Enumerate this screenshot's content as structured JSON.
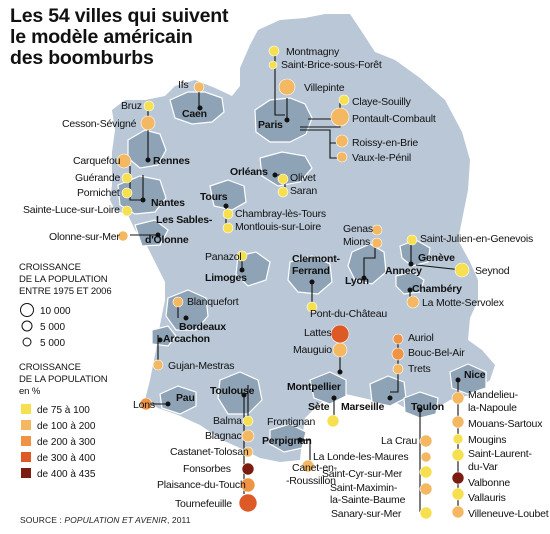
{
  "title": [
    "Les 54 villes qui suivent",
    "le modèle américain",
    "des boomburbs"
  ],
  "source": {
    "prefix": "SOURCE : ",
    "text": "POPULATION ET AVENIR",
    "suffix": ", 2011"
  },
  "legend": {
    "size_title": [
      "CROISSANCE",
      "DE LA POPULATION",
      "ENTRE 1975 ET 2006"
    ],
    "sizes": [
      "10 000",
      "5 000",
      "5 000"
    ],
    "color_title": [
      "CROISSANCE",
      "DE LA POPULATION",
      "en %"
    ],
    "classes": [
      {
        "label": "de 75 à 100",
        "color": "#f7e050"
      },
      {
        "label": "de 100 à 200",
        "color": "#f4b862"
      },
      {
        "label": "de 200 à 300",
        "color": "#ef9445"
      },
      {
        "label": "de 300 à 400",
        "color": "#dd5a27"
      },
      {
        "label": "de 400 à 435",
        "color": "#7a1c10"
      }
    ]
  },
  "colors": {
    "land": "#b9c7d6",
    "urban": "#8fa3b6",
    "urban_edge": "#ffffff",
    "line": "#111111"
  },
  "cities": [
    {
      "name": "Caen"
    },
    {
      "name": "Paris"
    },
    {
      "name": "Rennes"
    },
    {
      "name": "Nantes"
    },
    {
      "name": "Les Sables-"
    },
    {
      "name": "d'Olonne"
    },
    {
      "name": "Orléans"
    },
    {
      "name": "Tours"
    },
    {
      "name": "Limoges"
    },
    {
      "name": "Bordeaux"
    },
    {
      "name": "Arcachon"
    },
    {
      "name": "Pau"
    },
    {
      "name": "Toulouse"
    },
    {
      "name": "Perpignan"
    },
    {
      "name": "Montpellier"
    },
    {
      "name": "Sète"
    },
    {
      "name": "Marseille"
    },
    {
      "name": "Toulon"
    },
    {
      "name": "Nice"
    },
    {
      "name": "Clermont-"
    },
    {
      "name": "Ferrand"
    },
    {
      "name": "Lyon"
    },
    {
      "name": "Genève"
    },
    {
      "name": "Annecy"
    },
    {
      "name": "Chambéry"
    }
  ],
  "communes": [
    {
      "name": "Ifs",
      "growth_class": 2
    },
    {
      "name": "Montmagny",
      "growth_class": 1
    },
    {
      "name": "Saint-Brice-sous-Forêt",
      "growth_class": 1
    },
    {
      "name": "Villepinte",
      "growth_class": 2
    },
    {
      "name": "Claye-Souilly",
      "growth_class": 1
    },
    {
      "name": "Pontault-Combault",
      "growth_class": 2
    },
    {
      "name": "Roissy-en-Brie",
      "growth_class": 2
    },
    {
      "name": "Vaux-le-Pénil",
      "growth_class": 2
    },
    {
      "name": "Bruz",
      "growth_class": 1
    },
    {
      "name": "Cesson-Sévigné",
      "growth_class": 2
    },
    {
      "name": "Carquefou",
      "growth_class": 2
    },
    {
      "name": "Guérande",
      "growth_class": 1
    },
    {
      "name": "Pornichet",
      "growth_class": 1
    },
    {
      "name": "Sainte-Luce-sur-Loire",
      "growth_class": 1
    },
    {
      "name": "Olonne-sur-Mer",
      "growth_class": 2
    },
    {
      "name": "Olivet",
      "growth_class": 1
    },
    {
      "name": "Saran",
      "growth_class": 1
    },
    {
      "name": "Chambray-lès-Tours",
      "growth_class": 1
    },
    {
      "name": "Montlouis-sur-Loire",
      "growth_class": 1
    },
    {
      "name": "Panazol",
      "growth_class": 1
    },
    {
      "name": "Genas",
      "growth_class": 2
    },
    {
      "name": "Mions",
      "growth_class": 2
    },
    {
      "name": "Saint-Julien-en-Genevois",
      "growth_class": 1
    },
    {
      "name": "Seynod",
      "growth_class": 1
    },
    {
      "name": "La Motte-Servolex",
      "growth_class": 2
    },
    {
      "name": "Pont-du-Château",
      "growth_class": 1
    },
    {
      "name": "Blanquefort",
      "growth_class": 2
    },
    {
      "name": "Gujan-Mestras",
      "growth_class": 2
    },
    {
      "name": "Lons",
      "growth_class": 3
    },
    {
      "name": "Lattes",
      "growth_class": 4
    },
    {
      "name": "Mauguio",
      "growth_class": 2
    },
    {
      "name": "Auriol",
      "growth_class": 3
    },
    {
      "name": "Bouc-Bel-Air",
      "growth_class": 3
    },
    {
      "name": "Trets",
      "growth_class": 2
    },
    {
      "name": "Frontignan",
      "growth_class": 1
    },
    {
      "name": "Balma",
      "growth_class": 1
    },
    {
      "name": "Blagnac",
      "growth_class": 2
    },
    {
      "name": "Castanet-Tolosan",
      "growth_class": 2
    },
    {
      "name": "Fonsorbes",
      "growth_class": 5
    },
    {
      "name": "Plaisance-du-Touch",
      "growth_class": 3
    },
    {
      "name": "Tournefeuille",
      "growth_class": 4
    },
    {
      "name": "Canet-en-",
      "growth_class": 2
    },
    {
      "name": "-Roussillon",
      "growth_class": 2
    },
    {
      "name": "La Crau",
      "growth_class": 2
    },
    {
      "name": "La Londe-les-Maures",
      "growth_class": 2
    },
    {
      "name": "Saint-Cyr-sur-Mer",
      "growth_class": 1
    },
    {
      "name": "Saint-Maximin-",
      "growth_class": 2
    },
    {
      "name": "la-Sainte-Baume",
      "growth_class": 2
    },
    {
      "name": "Sanary-sur-Mer",
      "growth_class": 1
    },
    {
      "name": "Mandelieu-",
      "growth_class": 2
    },
    {
      "name": "la-Napoule",
      "growth_class": 2
    },
    {
      "name": "Mouans-Sartoux",
      "growth_class": 2
    },
    {
      "name": "Mougins",
      "growth_class": 1
    },
    {
      "name": "Saint-Laurent-",
      "growth_class": 1
    },
    {
      "name": "du-Var",
      "growth_class": 1
    },
    {
      "name": "Valbonne",
      "growth_class": 5
    },
    {
      "name": "Vallauris",
      "growth_class": 1
    },
    {
      "name": "Villeneuve-Loubet",
      "growth_class": 2
    }
  ]
}
